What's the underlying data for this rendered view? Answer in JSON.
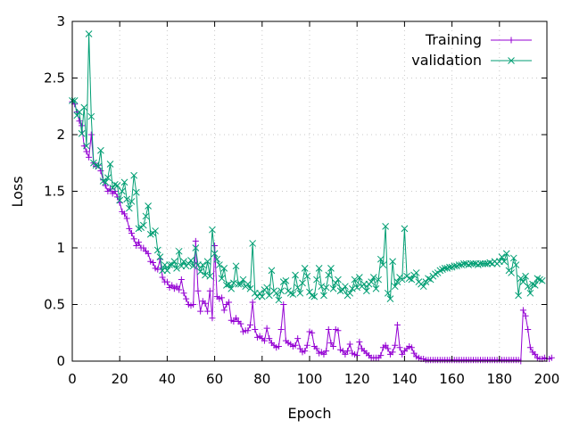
{
  "chart_data": {
    "type": "line",
    "title": "",
    "xlabel": "Epoch",
    "ylabel": "Loss",
    "xlim": [
      0,
      200
    ],
    "ylim": [
      0,
      3
    ],
    "grid": true,
    "legend_position": "top-right",
    "x_ticks": [
      "0",
      "20",
      "40",
      "60",
      "80",
      "100",
      "120",
      "140",
      "160",
      "180",
      "200"
    ],
    "y_ticks": [
      "0",
      "0.5",
      "1",
      "1.5",
      "2",
      "2.5",
      "3"
    ],
    "series": [
      {
        "name": "Training",
        "color": "#9400d3",
        "marker": "plus",
        "values": [
          2.29,
          2.27,
          2.2,
          2.12,
          2.08,
          1.9,
          1.85,
          1.8,
          2.0,
          1.75,
          1.72,
          1.73,
          1.68,
          1.6,
          1.55,
          1.5,
          1.52,
          1.48,
          1.5,
          1.45,
          1.4,
          1.32,
          1.3,
          1.26,
          1.17,
          1.13,
          1.08,
          1.02,
          1.05,
          1.0,
          1.0,
          0.97,
          0.95,
          0.88,
          0.87,
          0.82,
          0.81,
          0.9,
          0.74,
          0.7,
          0.7,
          0.65,
          0.67,
          0.64,
          0.66,
          0.63,
          0.72,
          0.6,
          0.55,
          0.5,
          0.49,
          0.5,
          1.06,
          0.62,
          0.44,
          0.53,
          0.51,
          0.44,
          0.62,
          0.38,
          1.02,
          0.57,
          0.55,
          0.56,
          0.45,
          0.5,
          0.52,
          0.36,
          0.35,
          0.38,
          0.35,
          0.33,
          0.26,
          0.27,
          0.27,
          0.32,
          0.52,
          0.28,
          0.21,
          0.22,
          0.2,
          0.18,
          0.29,
          0.2,
          0.16,
          0.14,
          0.12,
          0.13,
          0.28,
          0.5,
          0.18,
          0.16,
          0.15,
          0.13,
          0.14,
          0.2,
          0.11,
          0.08,
          0.09,
          0.14,
          0.26,
          0.25,
          0.13,
          0.11,
          0.07,
          0.08,
          0.06,
          0.09,
          0.28,
          0.16,
          0.13,
          0.28,
          0.27,
          0.1,
          0.09,
          0.06,
          0.09,
          0.15,
          0.07,
          0.06,
          0.05,
          0.17,
          0.11,
          0.09,
          0.07,
          0.05,
          0.03,
          0.03,
          0.03,
          0.03,
          0.05,
          0.12,
          0.14,
          0.11,
          0.06,
          0.08,
          0.14,
          0.32,
          0.12,
          0.06,
          0.09,
          0.11,
          0.13,
          0.12,
          0.07,
          0.04,
          0.03,
          0.02,
          0.02,
          0.01,
          0.01,
          0.01,
          0.01,
          0.01,
          0.01,
          0.01,
          0.01,
          0.01,
          0.01,
          0.01,
          0.01,
          0.01,
          0.01,
          0.01,
          0.01,
          0.01,
          0.01,
          0.01,
          0.01,
          0.01,
          0.01,
          0.01,
          0.01,
          0.01,
          0.01,
          0.01,
          0.01,
          0.01,
          0.01,
          0.01,
          0.01,
          0.01,
          0.01,
          0.01,
          0.01,
          0.01,
          0.01,
          0.01,
          0.01,
          0.0,
          0.45,
          0.4,
          0.28,
          0.12,
          0.08,
          0.06,
          0.03,
          0.02,
          0.02,
          0.03,
          0.02,
          0.02,
          0.03
        ]
      },
      {
        "name": "validation",
        "color": "#009e73",
        "marker": "cross",
        "values": [
          2.3,
          2.3,
          2.17,
          2.2,
          2.01,
          2.24,
          1.9,
          2.89,
          2.16,
          1.75,
          1.73,
          1.72,
          1.86,
          1.59,
          1.58,
          1.62,
          1.74,
          1.53,
          1.56,
          1.55,
          1.42,
          1.5,
          1.58,
          1.43,
          1.35,
          1.41,
          1.64,
          1.49,
          1.17,
          1.18,
          1.2,
          1.28,
          1.37,
          1.12,
          1.13,
          1.15,
          0.98,
          0.92,
          0.8,
          0.85,
          0.8,
          0.85,
          0.85,
          0.88,
          0.82,
          0.97,
          0.84,
          0.88,
          0.84,
          0.86,
          0.89,
          0.84,
          1.0,
          0.85,
          0.79,
          0.85,
          0.76,
          0.88,
          0.75,
          1.16,
          0.95,
          0.9,
          0.85,
          0.73,
          0.82,
          0.67,
          0.68,
          0.64,
          0.69,
          0.84,
          0.68,
          0.68,
          0.72,
          0.66,
          0.68,
          0.64,
          1.04,
          0.6,
          0.57,
          0.6,
          0.57,
          0.63,
          0.65,
          0.58,
          0.8,
          0.62,
          0.6,
          0.54,
          0.62,
          0.7,
          0.71,
          0.62,
          0.6,
          0.59,
          0.76,
          0.65,
          0.6,
          0.69,
          0.82,
          0.75,
          0.61,
          0.58,
          0.57,
          0.72,
          0.82,
          0.66,
          0.58,
          0.65,
          0.76,
          0.82,
          0.64,
          0.69,
          0.72,
          0.62,
          0.63,
          0.66,
          0.58,
          0.6,
          0.64,
          0.72,
          0.65,
          0.74,
          0.66,
          0.68,
          0.62,
          0.68,
          0.7,
          0.74,
          0.64,
          0.72,
          0.9,
          0.85,
          1.19,
          0.6,
          0.55,
          0.88,
          0.66,
          0.7,
          0.74,
          0.72,
          1.17,
          0.75,
          0.73,
          0.72,
          0.76,
          0.78,
          0.7,
          0.68,
          0.66,
          0.7,
          0.73,
          0.72,
          0.75,
          0.77,
          0.78,
          0.8,
          0.81,
          0.82,
          0.82,
          0.83,
          0.83,
          0.84,
          0.84,
          0.85,
          0.85,
          0.86,
          0.86,
          0.85,
          0.86,
          0.86,
          0.86,
          0.85,
          0.86,
          0.86,
          0.86,
          0.86,
          0.87,
          0.86,
          0.88,
          0.86,
          0.88,
          0.92,
          0.88,
          0.95,
          0.8,
          0.78,
          0.91,
          0.85,
          0.58,
          0.73,
          0.7,
          0.75,
          0.66,
          0.6,
          0.68,
          0.67,
          0.73,
          0.72,
          0.71
        ]
      }
    ]
  }
}
